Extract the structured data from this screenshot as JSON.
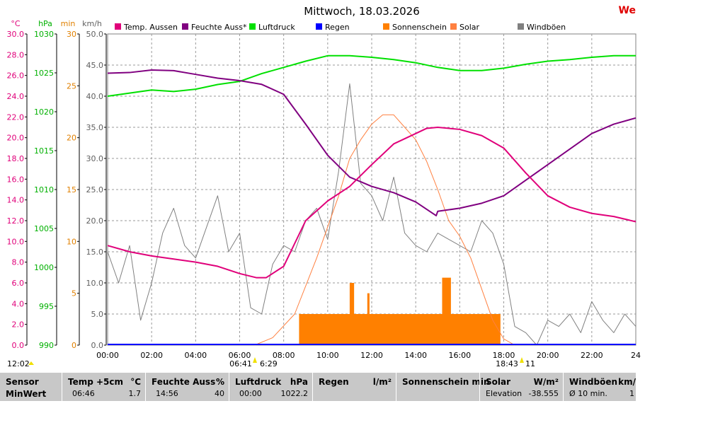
{
  "chart_data": {
    "type": "line",
    "title": "Mittwoch, 18.03.2026",
    "title_right": "We",
    "x_ticks": [
      "00:00",
      "02:00",
      "04:00",
      "06:00",
      "08:00",
      "10:00",
      "12:00",
      "14:00",
      "16:00",
      "18:00",
      "20:00",
      "22:00",
      "24"
    ],
    "xlim": [
      0,
      24
    ],
    "axes": [
      {
        "unit": "°C",
        "color": "#e0007a",
        "ylim": [
          0,
          30
        ],
        "ticks": [
          "0.0",
          "2.0",
          "4.0",
          "6.0",
          "8.0",
          "10.0",
          "12.0",
          "14.0",
          "16.0",
          "18.0",
          "20.0",
          "22.0",
          "24.0",
          "26.0",
          "28.0",
          "30.0"
        ]
      },
      {
        "unit": "hPa",
        "color": "#00b000",
        "ylim": [
          990,
          1030
        ],
        "ticks": [
          "990",
          "995",
          "1000",
          "1005",
          "1010",
          "1015",
          "1020",
          "1025",
          "1030"
        ]
      },
      {
        "unit": "min",
        "color": "#e08000",
        "ylim": [
          0,
          30
        ],
        "ticks": [
          "0",
          "5",
          "10",
          "15",
          "20",
          "25",
          "30"
        ]
      },
      {
        "unit": "km/h",
        "color": "#606060",
        "ylim": [
          0,
          50
        ],
        "ticks": [
          "0.0",
          "5.0",
          "10.0",
          "15.0",
          "20.0",
          "25.0",
          "30.0",
          "35.0",
          "40.0",
          "45.0",
          "50.0"
        ]
      }
    ],
    "legend": [
      {
        "name": "Temp. Aussen",
        "color": "#e0007a"
      },
      {
        "name": "Feuchte Auss*",
        "color": "#800080"
      },
      {
        "name": "Luftdruck",
        "color": "#00e000"
      },
      {
        "name": "Regen",
        "color": "#0000ff"
      },
      {
        "name": "Sonnenschein",
        "color": "#ff8000"
      },
      {
        "name": "Solar",
        "color": "#ff8040"
      },
      {
        "name": "Windböen",
        "color": "#808080"
      }
    ],
    "series": [
      {
        "name": "Temp. Aussen",
        "axis": 0,
        "color": "#e0007a",
        "x": [
          0,
          1,
          2,
          3,
          4,
          5,
          6,
          6.77,
          7.2,
          8,
          9,
          10,
          11,
          12,
          13,
          14,
          14.5,
          15,
          16,
          17,
          18,
          19,
          20,
          21,
          22,
          23,
          24
        ],
        "y": [
          9.6,
          9.0,
          8.6,
          8.3,
          8.0,
          7.6,
          6.9,
          6.5,
          6.5,
          7.6,
          12.0,
          13.9,
          15.3,
          17.4,
          19.4,
          20.4,
          20.9,
          21.0,
          20.8,
          20.2,
          19.0,
          16.6,
          14.4,
          13.3,
          12.7,
          12.4,
          11.9
        ]
      },
      {
        "name": "Feuchte Auss*",
        "axis": 3,
        "color": "#800080",
        "x": [
          0,
          1,
          2,
          3,
          4,
          5,
          6,
          7,
          8,
          9,
          10,
          11,
          12,
          13,
          14,
          14.93,
          15,
          16,
          17,
          18,
          19,
          20,
          21,
          22,
          23,
          24
        ],
        "y": [
          43.7,
          43.8,
          44.2,
          44.1,
          43.5,
          42.9,
          42.5,
          41.9,
          40.3,
          35.5,
          30.5,
          27.0,
          25.5,
          24.5,
          23.0,
          20.8,
          21.5,
          22.0,
          22.8,
          24.0,
          26.5,
          29.0,
          31.5,
          34.0,
          35.5,
          36.5
        ]
      },
      {
        "name": "Luftdruck",
        "axis": 1,
        "color": "#00e000",
        "x": [
          0,
          1,
          2,
          3,
          4,
          5,
          6,
          7,
          8,
          9,
          10,
          11,
          12,
          13,
          14,
          15,
          16,
          17,
          18,
          19,
          20,
          21,
          22,
          23,
          24
        ],
        "y": [
          1022.0,
          1022.4,
          1022.8,
          1022.6,
          1022.9,
          1023.5,
          1023.9,
          1024.9,
          1025.7,
          1026.5,
          1027.2,
          1027.2,
          1027.0,
          1026.7,
          1026.3,
          1025.7,
          1025.3,
          1025.3,
          1025.6,
          1026.1,
          1026.5,
          1026.7,
          1027.0,
          1027.2,
          1027.2
        ]
      },
      {
        "name": "Solar",
        "axis": 3,
        "color": "#ff8040",
        "x": [
          6.68,
          7.5,
          8.5,
          9.5,
          10.5,
          11.0,
          11.5,
          12.0,
          12.5,
          13.0,
          13.5,
          14.0,
          14.5,
          15.0,
          15.5,
          16.0,
          16.5,
          17.0,
          17.5,
          18.0,
          18.5
        ],
        "y": [
          0,
          1.2,
          5.0,
          14.0,
          24.0,
          30.0,
          33.0,
          35.5,
          37.0,
          37.0,
          35.0,
          33.0,
          29.5,
          25.0,
          20.0,
          17.5,
          14.0,
          9.0,
          4.0,
          1.0,
          0
        ]
      },
      {
        "name": "Sonnenschein",
        "axis": 2,
        "color": "#ff8000",
        "type": "area",
        "x": [
          8.7,
          10.7,
          11.0,
          11.2,
          11.6,
          11.8,
          11.9,
          12.0,
          15.0,
          15.2,
          15.4,
          15.6,
          17.85
        ],
        "y": [
          3.0,
          3.0,
          6.0,
          3.0,
          3.0,
          5.0,
          3.0,
          3.0,
          3.0,
          6.5,
          6.5,
          3.0,
          3.0
        ]
      },
      {
        "name": "Windböen",
        "axis": 3,
        "color": "#808080",
        "x": [
          0,
          0.5,
          1,
          1.5,
          2,
          2.5,
          3,
          3.5,
          4,
          4.5,
          5,
          5.5,
          6,
          6.5,
          7,
          7.5,
          8,
          8.5,
          9,
          9.5,
          10,
          10.5,
          11,
          11.5,
          12,
          12.5,
          13,
          13.5,
          14,
          14.5,
          15,
          15.5,
          16,
          16.5,
          17,
          17.5,
          18,
          18.5,
          19,
          19.5,
          20,
          20.5,
          21,
          21.5,
          22,
          22.5,
          23,
          23.5,
          24
        ],
        "y": [
          15,
          10,
          16,
          4,
          10,
          18,
          22,
          16,
          14,
          19,
          24,
          15,
          18,
          6,
          5,
          13,
          16,
          15,
          20,
          22,
          17,
          28,
          42,
          26,
          24,
          20,
          27,
          18,
          16,
          15,
          18,
          17,
          16,
          15,
          20,
          18,
          13,
          3,
          2,
          0,
          4,
          3,
          5,
          2,
          7,
          4,
          2,
          5,
          3
        ]
      }
    ],
    "markers": {
      "sunrise": "06:41",
      "sunrise_value": "6:29",
      "sunset": "18:43",
      "sunset_value": "11",
      "current_time": "12:02"
    }
  },
  "footer": {
    "sensor": {
      "label": "Sensor",
      "value": "MinWert"
    },
    "temp": {
      "label": "Temp +5cm",
      "unit": "°C",
      "time": "06:46",
      "value": "1.7"
    },
    "humidity": {
      "label": "Feuchte Auss",
      "unit": "%",
      "time": "14:56",
      "value": "40"
    },
    "pressure": {
      "label": "Luftdruck",
      "unit": "hPa",
      "time": "00:00",
      "value": "1022.2"
    },
    "rain": {
      "label": "Regen",
      "unit": "l/m²"
    },
    "sunshine": {
      "label": "Sonnenschein min"
    },
    "solar": {
      "label": "Solar",
      "unit": "W/m²",
      "sub": "Elevation",
      "value": "-38.555"
    },
    "gusts": {
      "label": "Windböen",
      "unit": "km/",
      "sub": "Ø 10 min.",
      "value": "1"
    }
  }
}
